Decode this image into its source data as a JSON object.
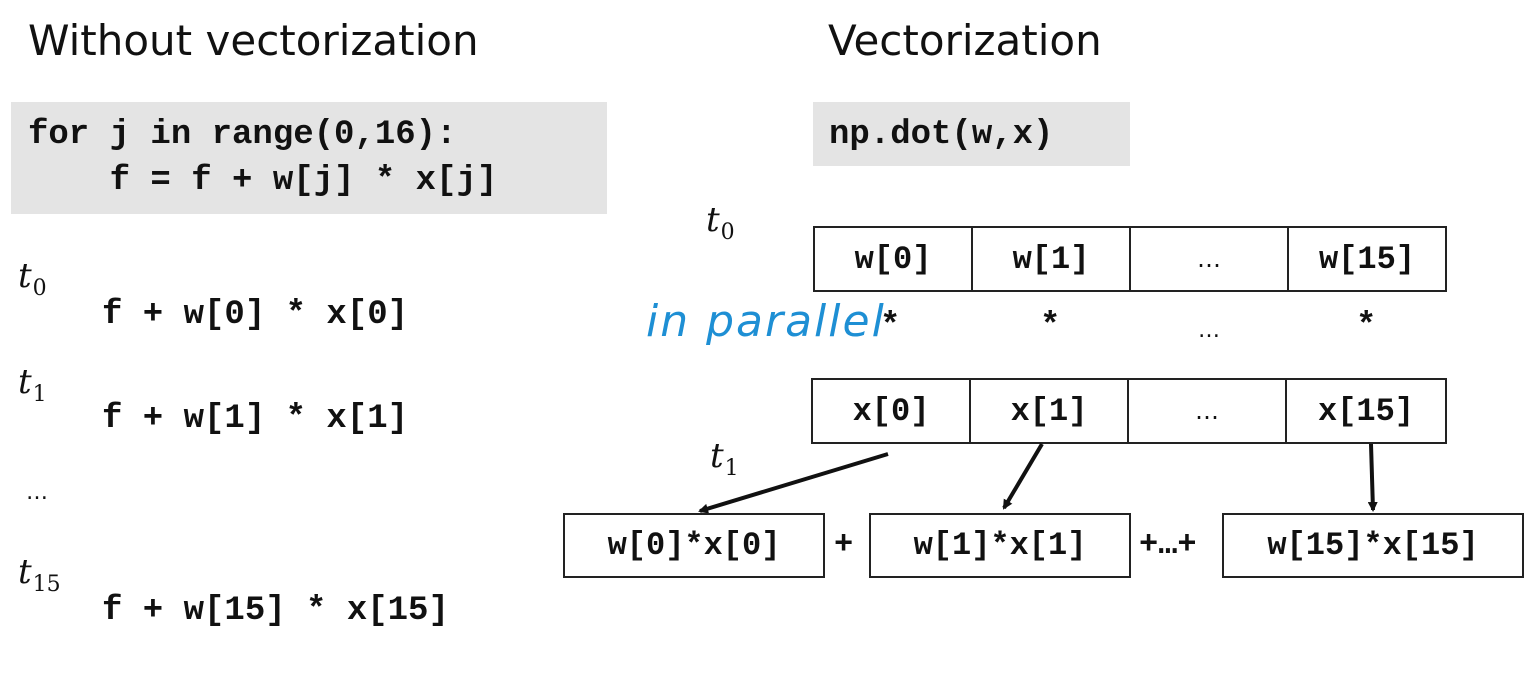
{
  "left": {
    "heading": "Without vectorization",
    "code_line1": "for j in range(0,16):",
    "code_line2": "    f = f + w[j] * x[j]",
    "steps": [
      {
        "t": "t",
        "sub": "0",
        "expr": "f + w[0] * x[0]"
      },
      {
        "t": "t",
        "sub": "1",
        "expr": "f + w[1] * x[1]"
      },
      {
        "ellipsis": "…"
      },
      {
        "t": "t",
        "sub": "15",
        "expr": "f + w[15] * x[15]"
      }
    ]
  },
  "right": {
    "heading": "Vectorization",
    "code": "np.dot(w,x)",
    "t0": {
      "t": "t",
      "sub": "0"
    },
    "t1": {
      "t": "t",
      "sub": "1"
    },
    "w_cells": [
      "w[0]",
      "w[1]",
      "…",
      "w[15]"
    ],
    "stars": [
      "*",
      "*",
      "…",
      "*"
    ],
    "x_cells": [
      "x[0]",
      "x[1]",
      "…",
      "x[15]"
    ],
    "annotation": "in parallel",
    "products": [
      "w[0]*x[0]",
      "w[1]*x[1]",
      "w[15]*x[15]"
    ],
    "plus1": "+",
    "plus2": "+…+"
  },
  "colors": {
    "code_bg": "#e4e4e4",
    "annotation": "#1e8fd4"
  }
}
